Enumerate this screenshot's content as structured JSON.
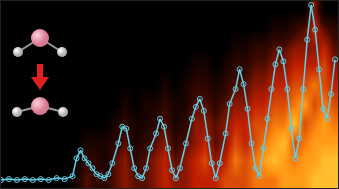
{
  "chart_data": {
    "type": "line",
    "tick_labels": false,
    "grid": false,
    "xlim": [
      0,
      339
    ],
    "ylim": [
      0,
      189
    ],
    "color": "#5fd0e8",
    "marker": "open_circle",
    "x": [
      0,
      8,
      16,
      24,
      32,
      40,
      48,
      56,
      64,
      72,
      76,
      80,
      84,
      88,
      92,
      96,
      100,
      104,
      108,
      112,
      118,
      122,
      126,
      130,
      134,
      138,
      142,
      146,
      150,
      156,
      160,
      164,
      168,
      172,
      176,
      180,
      186,
      192,
      196,
      200,
      204,
      208,
      212,
      216,
      220,
      226,
      230,
      236,
      240,
      244,
      248,
      252,
      256,
      260,
      264,
      268,
      272,
      276,
      280,
      284,
      288,
      292,
      296,
      300,
      304,
      308,
      312,
      316,
      320,
      324,
      328,
      332,
      336
    ],
    "values": [
      8,
      9,
      8,
      9,
      8,
      9,
      8,
      10,
      9,
      12,
      30,
      38,
      30,
      25,
      20,
      14,
      12,
      10,
      14,
      25,
      45,
      62,
      60,
      40,
      20,
      12,
      10,
      20,
      40,
      55,
      70,
      62,
      40,
      18,
      10,
      20,
      45,
      70,
      82,
      90,
      78,
      50,
      25,
      10,
      25,
      55,
      85,
      100,
      120,
      105,
      80,
      45,
      20,
      12,
      40,
      70,
      100,
      125,
      140,
      128,
      100,
      60,
      30,
      50,
      100,
      150,
      185,
      160,
      120,
      80,
      70,
      95,
      130
    ],
    "heatmap": {
      "x": [
        5,
        15,
        25,
        35,
        45,
        55,
        65,
        75,
        85,
        95,
        105,
        115,
        125,
        135,
        145,
        155,
        165,
        175,
        185,
        195,
        205,
        215,
        225,
        235,
        245,
        255,
        265,
        275,
        285,
        295,
        305,
        315,
        325,
        335
      ],
      "y": [
        9,
        28,
        47,
        66,
        85,
        104,
        123,
        142,
        161,
        180
      ],
      "zlim": [
        0,
        10
      ],
      "z": [
        [
          0,
          0,
          0,
          0,
          0,
          0,
          0,
          1,
          3,
          2,
          2,
          3,
          4,
          3,
          3,
          4,
          5,
          4,
          4,
          5,
          5,
          5,
          6,
          6,
          6,
          7,
          7,
          7,
          8,
          8,
          8,
          9,
          9,
          9
        ],
        [
          0,
          0,
          0,
          0,
          0,
          0,
          0,
          0,
          2,
          2,
          1,
          3,
          4,
          2,
          3,
          4,
          5,
          3,
          4,
          5,
          6,
          4,
          5,
          7,
          6,
          7,
          8,
          9,
          8,
          7,
          8,
          8,
          9,
          9
        ],
        [
          0,
          0,
          0,
          0,
          0,
          0,
          0,
          0,
          1,
          1,
          1,
          2,
          3,
          1,
          2,
          3,
          4,
          2,
          3,
          4,
          5,
          3,
          4,
          6,
          5,
          6,
          7,
          8,
          9,
          6,
          7,
          8,
          8,
          8
        ],
        [
          0,
          0,
          0,
          0,
          0,
          0,
          0,
          0,
          0,
          0,
          0,
          1,
          2,
          1,
          1,
          2,
          3,
          1,
          2,
          4,
          4,
          3,
          4,
          5,
          5,
          6,
          6,
          7,
          7,
          9,
          6,
          7,
          8,
          7
        ],
        [
          0,
          0,
          0,
          0,
          0,
          0,
          0,
          0,
          0,
          0,
          0,
          0,
          1,
          0,
          1,
          1,
          2,
          1,
          1,
          3,
          3,
          2,
          3,
          4,
          4,
          5,
          5,
          6,
          6,
          7,
          8,
          6,
          7,
          6
        ],
        [
          0,
          0,
          0,
          0,
          0,
          0,
          0,
          0,
          0,
          0,
          0,
          0,
          0,
          0,
          0,
          0,
          1,
          0,
          1,
          2,
          2,
          1,
          2,
          3,
          3,
          4,
          4,
          5,
          5,
          6,
          6,
          7,
          6,
          5
        ],
        [
          0,
          0,
          0,
          0,
          0,
          0,
          0,
          0,
          0,
          0,
          0,
          0,
          0,
          0,
          0,
          0,
          0,
          0,
          0,
          1,
          1,
          0,
          1,
          2,
          2,
          3,
          3,
          4,
          4,
          5,
          5,
          5,
          6,
          4
        ],
        [
          0,
          0,
          0,
          0,
          0,
          0,
          0,
          0,
          0,
          0,
          0,
          0,
          0,
          0,
          0,
          0,
          0,
          0,
          0,
          0,
          0,
          0,
          0,
          1,
          1,
          2,
          2,
          3,
          3,
          4,
          4,
          4,
          5,
          3
        ],
        [
          0,
          0,
          0,
          0,
          0,
          0,
          0,
          0,
          0,
          0,
          0,
          0,
          0,
          0,
          0,
          0,
          0,
          0,
          0,
          0,
          0,
          0,
          0,
          0,
          0,
          0,
          0,
          1,
          1,
          2,
          3,
          5,
          3,
          2
        ],
        [
          0,
          0,
          0,
          0,
          0,
          0,
          0,
          0,
          0,
          0,
          0,
          0,
          0,
          0,
          0,
          0,
          0,
          0,
          0,
          0,
          0,
          0,
          0,
          0,
          0,
          0,
          0,
          0,
          0,
          0,
          0,
          4,
          0,
          0
        ]
      ]
    }
  }
}
